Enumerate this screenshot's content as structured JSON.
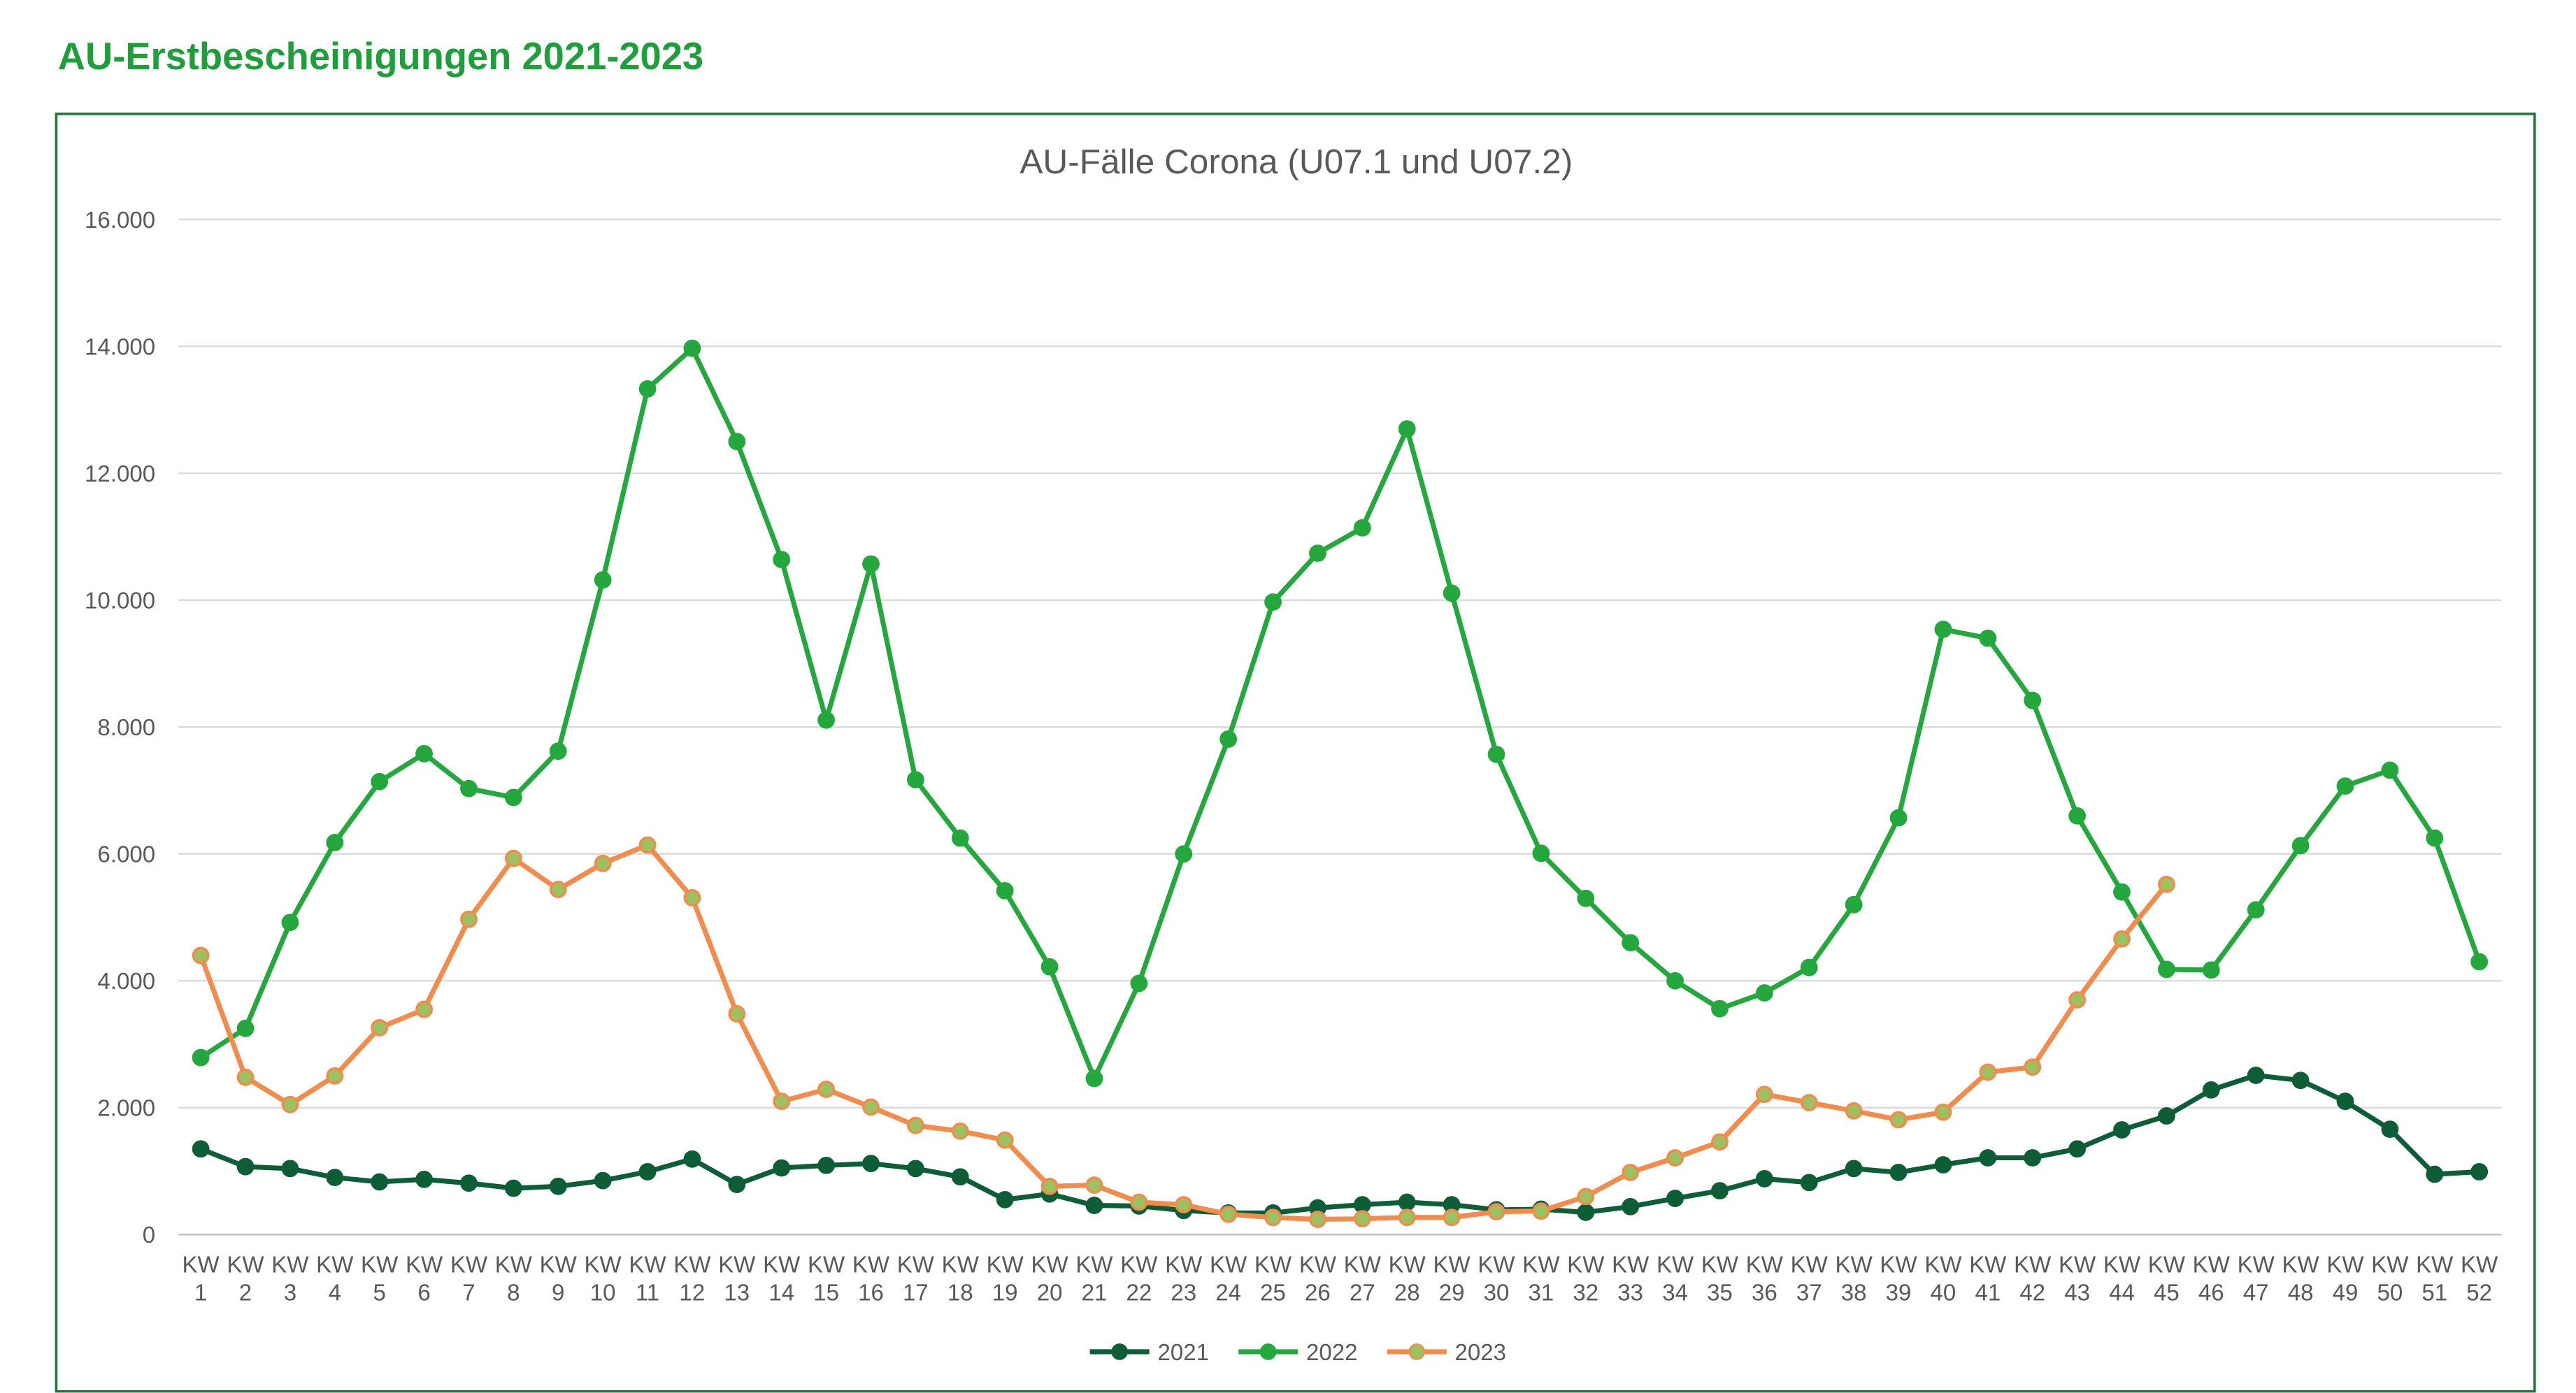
{
  "page_title": "AU-Erstbescheinigungen 2021-2023",
  "chart_data": {
    "type": "line",
    "title": "AU-Fälle Corona (U07.1 und U07.2)",
    "categories": [
      "KW 1",
      "KW 2",
      "KW 3",
      "KW 4",
      "KW 5",
      "KW 6",
      "KW 7",
      "KW 8",
      "KW 9",
      "KW 10",
      "KW 11",
      "KW 12",
      "KW 13",
      "KW 14",
      "KW 15",
      "KW 16",
      "KW 17",
      "KW 18",
      "KW 19",
      "KW 20",
      "KW 21",
      "KW 22",
      "KW 23",
      "KW 24",
      "KW 25",
      "KW 26",
      "KW 27",
      "KW 28",
      "KW 29",
      "KW 30",
      "KW 31",
      "KW 32",
      "KW 33",
      "KW 34",
      "KW 35",
      "KW 36",
      "KW 37",
      "KW 38",
      "KW 39",
      "KW 40",
      "KW 41",
      "KW 42",
      "KW 43",
      "KW 44",
      "KW 45",
      "KW 46",
      "KW 47",
      "KW 48",
      "KW 49",
      "KW 50",
      "KW 51",
      "KW 52"
    ],
    "series": [
      {
        "name": "2021",
        "color": "#0d5e36",
        "values": [
          1350,
          1070,
          1040,
          900,
          830,
          870,
          810,
          730,
          760,
          850,
          990,
          1190,
          790,
          1050,
          1090,
          1120,
          1040,
          910,
          550,
          640,
          460,
          450,
          380,
          340,
          340,
          420,
          470,
          510,
          470,
          390,
          400,
          350,
          440,
          570,
          690,
          880,
          820,
          1040,
          980,
          1100,
          1210,
          1210,
          1350,
          1650,
          1870,
          2280,
          2510,
          2430,
          2100,
          1660,
          950,
          990
        ]
      },
      {
        "name": "2022",
        "color": "#24a83e",
        "values": [
          2790,
          3250,
          4920,
          6180,
          7140,
          7580,
          7030,
          6890,
          7620,
          10320,
          13330,
          13970,
          12500,
          10640,
          8110,
          10570,
          7170,
          6250,
          5420,
          4220,
          2460,
          3960,
          6000,
          7810,
          9970,
          10740,
          11140,
          12700,
          10110,
          7570,
          6010,
          5300,
          4600,
          4000,
          3560,
          3810,
          4210,
          5200,
          6570,
          9540,
          9400,
          8420,
          6600,
          5400,
          4180,
          4170,
          5120,
          6130,
          7070,
          7320,
          6250,
          4300
        ]
      },
      {
        "name": "2023",
        "color": "#f28c4c",
        "values": [
          4400,
          2480,
          2050,
          2500,
          3260,
          3550,
          4970,
          5930,
          5440,
          5850,
          6140,
          5310,
          3480,
          2100,
          2290,
          2010,
          1720,
          1630,
          1490,
          760,
          780,
          510,
          470,
          320,
          270,
          240,
          250,
          270,
          270,
          360,
          370,
          600,
          980,
          1210,
          1460,
          2210,
          2080,
          1950,
          1810,
          1930,
          2560,
          2640,
          3700,
          4660,
          5520,
          null,
          null,
          null,
          null,
          null,
          null,
          null
        ]
      }
    ],
    "ylim": [
      0,
      16000
    ],
    "yticks": [
      0,
      {
        "value": 2000,
        "label": "2.000"
      },
      {
        "value": 4000,
        "label": "4.000"
      },
      {
        "value": 6000,
        "label": "6.000"
      },
      {
        "value": 8000,
        "label": "8.000"
      },
      {
        "value": 10000,
        "label": "10.000"
      },
      {
        "value": 12000,
        "label": "12.000"
      },
      {
        "value": 14000,
        "label": "14.000"
      },
      {
        "value": 16000,
        "label": "16.000"
      }
    ],
    "grid": true,
    "legend": "bottom"
  }
}
